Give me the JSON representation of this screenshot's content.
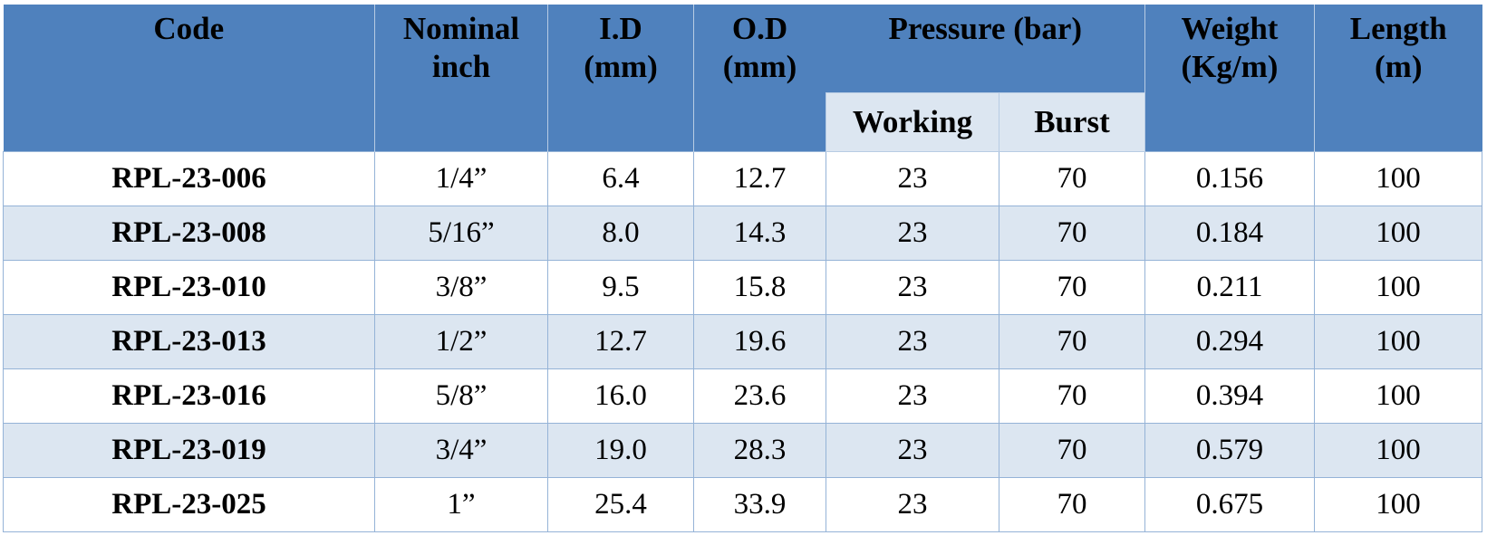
{
  "table": {
    "header": {
      "code": "Code",
      "nominal": "Nominal\ninch",
      "id": "I.D\n(mm)",
      "od": "O.D\n(mm)",
      "pressure": "Pressure (bar)",
      "working": "Working",
      "burst": "Burst",
      "weight": "Weight\n(Kg/m)",
      "length": "Length\n(m)"
    },
    "rows": [
      [
        "RPL-23-006",
        "1/4”",
        "6.4",
        "12.7",
        "23",
        "70",
        "0.156",
        "100"
      ],
      [
        "RPL-23-008",
        "5/16”",
        "8.0",
        "14.3",
        "23",
        "70",
        "0.184",
        "100"
      ],
      [
        "RPL-23-010",
        "3/8”",
        "9.5",
        "15.8",
        "23",
        "70",
        "0.211",
        "100"
      ],
      [
        "RPL-23-013",
        "1/2”",
        "12.7",
        "19.6",
        "23",
        "70",
        "0.294",
        "100"
      ],
      [
        "RPL-23-016",
        "5/8”",
        "16.0",
        "23.6",
        "23",
        "70",
        "0.394",
        "100"
      ],
      [
        "RPL-23-019",
        "3/4”",
        "19.0",
        "28.3",
        "23",
        "70",
        "0.579",
        "100"
      ],
      [
        "RPL-23-025",
        "1”",
        "25.4",
        "33.9",
        "23",
        "70",
        "0.675",
        "100"
      ]
    ]
  }
}
